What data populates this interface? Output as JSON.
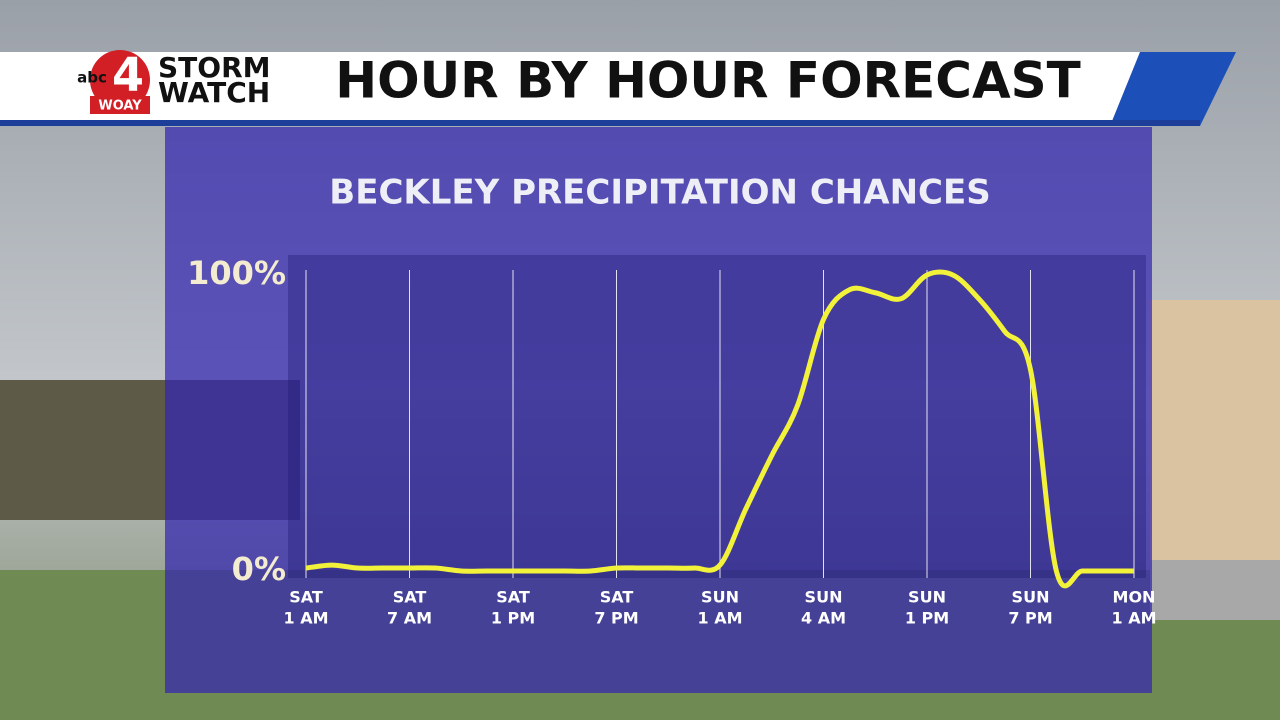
{
  "header": {
    "logo_network": "abc",
    "logo_number": "4",
    "logo_station": "WOAY",
    "brand_line1": "STORM",
    "brand_line2": "WATCH",
    "title": "HOUR BY HOUR FORECAST"
  },
  "chart_data": {
    "type": "line",
    "title": "BECKLEY PRECIPITATION CHANCES",
    "categories": [
      [
        "SAT",
        "1 AM"
      ],
      null,
      null,
      null,
      [
        "SAT",
        "7 AM"
      ],
      null,
      null,
      null,
      [
        "SAT",
        "1 PM"
      ],
      null,
      null,
      null,
      [
        "SAT",
        "7 PM"
      ],
      null,
      null,
      null,
      [
        "SUN",
        "1 AM"
      ],
      null,
      null,
      null,
      [
        "SUN",
        "4 AM"
      ],
      null,
      null,
      null,
      [
        "SUN",
        "1 PM"
      ],
      null,
      null,
      null,
      [
        "SUN",
        "7 PM"
      ],
      null,
      null,
      null,
      [
        "MON",
        "1 AM"
      ]
    ],
    "series": [
      {
        "color": "#f2f23a",
        "values": [
          1,
          2,
          1,
          1,
          1,
          1,
          0,
          0,
          0,
          0,
          0,
          0,
          1,
          1,
          1,
          1,
          2,
          21,
          39,
          56,
          85,
          95,
          94,
          92,
          100,
          100,
          92,
          81,
          68,
          0,
          0,
          0,
          0
        ]
      }
    ],
    "ylim": [
      0,
      100
    ],
    "yticks": [
      {
        "value": 0,
        "label": "0%"
      },
      {
        "value": 100,
        "label": "100%"
      }
    ],
    "grid": true
  }
}
